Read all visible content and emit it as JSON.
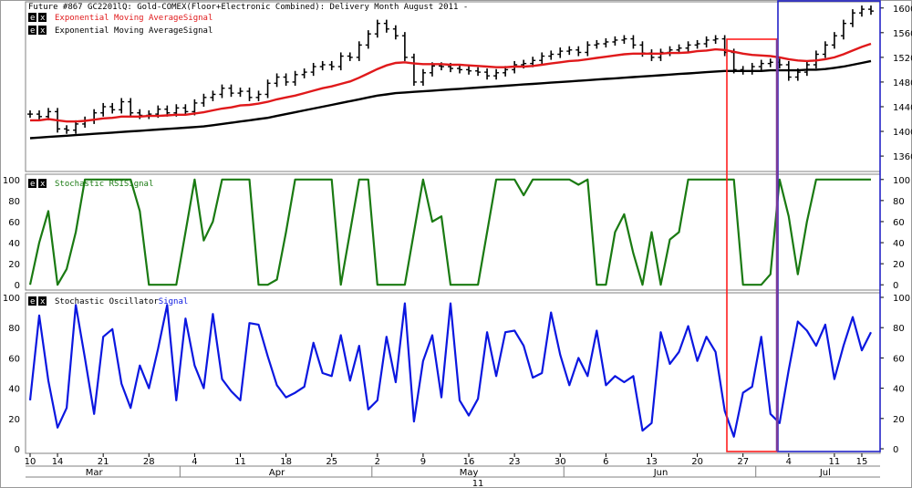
{
  "colors": {
    "price": "#000000",
    "ema_fast": "#e0191b",
    "ema_slow": "#000000",
    "rsi": "#1a7a12",
    "stoch": "#0b17e0",
    "red_box": "#ff1f1f",
    "blue_box": "#2323c8",
    "purple_line": "#7a3a9a",
    "grid": "#c8c8c8"
  },
  "panels": {
    "price": {
      "title": "Future #867 GC2201lQ: Gold-COMEX(Floor+Electronic Combined): Delivery Month August 2011 -",
      "legend": [
        {
          "icon": "ex",
          "text": "Exponential Moving AverageSignal",
          "color": "#e0191b"
        },
        {
          "icon": "ex",
          "text": "Exponential Moving AverageSignal",
          "color": "#000000"
        }
      ]
    },
    "rsi": {
      "legend_prefix": "Stochastic ",
      "legend_mid": "RSI",
      "legend_suffix": "Signal",
      "icon": "ex"
    },
    "stoch": {
      "legend_prefix": "Stochastic Oscillator",
      "legend_suffix": "Signal",
      "icon": "ex"
    }
  },
  "x_axis": {
    "day_ticks": [
      {
        "label": "10",
        "i": 0
      },
      {
        "label": "14",
        "i": 3
      },
      {
        "label": "21",
        "i": 8
      },
      {
        "label": "28",
        "i": 13
      },
      {
        "label": "4",
        "i": 18
      },
      {
        "label": "11",
        "i": 23
      },
      {
        "label": "18",
        "i": 28
      },
      {
        "label": "25",
        "i": 33
      },
      {
        "label": "2",
        "i": 38
      },
      {
        "label": "9",
        "i": 43
      },
      {
        "label": "16",
        "i": 48
      },
      {
        "label": "23",
        "i": 53
      },
      {
        "label": "30",
        "i": 58
      },
      {
        "label": "6",
        "i": 63
      },
      {
        "label": "13",
        "i": 68
      },
      {
        "label": "20",
        "i": 73
      },
      {
        "label": "27",
        "i": 78
      },
      {
        "label": "4",
        "i": 83
      },
      {
        "label": "11",
        "i": 88
      },
      {
        "label": "15",
        "i": 91
      }
    ],
    "months": [
      {
        "label": "Mar",
        "i": 7
      },
      {
        "label": "Apr",
        "i": 27
      },
      {
        "label": "May",
        "i": 48
      },
      {
        "label": "Jun",
        "i": 69
      },
      {
        "label": "Jul",
        "i": 87
      }
    ],
    "year": "11"
  },
  "chart_data": [
    {
      "type": "ohlc",
      "title": "Future #867 GC2201lQ: Gold-COMEX(Floor+Electronic Combined): Delivery Month August 2011 -",
      "ylim": [
        1335,
        1610
      ],
      "yticks": [
        1360,
        1400,
        1440,
        1480,
        1520,
        1560,
        1600
      ],
      "close": [
        1428,
        1424,
        1432,
        1404,
        1402,
        1412,
        1418,
        1430,
        1440,
        1435,
        1448,
        1430,
        1426,
        1428,
        1436,
        1430,
        1438,
        1432,
        1446,
        1455,
        1460,
        1470,
        1462,
        1465,
        1455,
        1460,
        1478,
        1488,
        1480,
        1492,
        1496,
        1505,
        1508,
        1505,
        1522,
        1520,
        1540,
        1558,
        1575,
        1566,
        1555,
        1520,
        1480,
        1495,
        1506,
        1505,
        1502,
        1500,
        1498,
        1496,
        1490,
        1495,
        1500,
        1508,
        1510,
        1515,
        1522,
        1525,
        1530,
        1532,
        1528,
        1540,
        1542,
        1545,
        1548,
        1550,
        1540,
        1527,
        1520,
        1528,
        1532,
        1535,
        1540,
        1542,
        1548,
        1550,
        1528,
        1500,
        1498,
        1505,
        1510,
        1512,
        1508,
        1488,
        1496,
        1508,
        1525,
        1540,
        1555,
        1575,
        1592,
        1598,
        1595
      ],
      "series": [
        {
          "name": "Exponential Moving AverageSignal",
          "color": "#e0191b",
          "values": [
            1418,
            1418,
            1420,
            1418,
            1416,
            1416,
            1417,
            1419,
            1421,
            1422,
            1424,
            1424,
            1424,
            1425,
            1425,
            1426,
            1427,
            1427,
            1429,
            1431,
            1434,
            1437,
            1439,
            1442,
            1443,
            1445,
            1448,
            1452,
            1455,
            1458,
            1462,
            1466,
            1470,
            1473,
            1477,
            1481,
            1487,
            1494,
            1501,
            1507,
            1511,
            1512,
            1510,
            1509,
            1509,
            1509,
            1508,
            1508,
            1507,
            1506,
            1505,
            1504,
            1504,
            1505,
            1505,
            1506,
            1508,
            1510,
            1512,
            1514,
            1515,
            1517,
            1519,
            1521,
            1523,
            1525,
            1526,
            1526,
            1526,
            1526,
            1527,
            1527,
            1528,
            1530,
            1531,
            1533,
            1532,
            1529,
            1526,
            1524,
            1523,
            1522,
            1520,
            1517,
            1515,
            1514,
            1515,
            1517,
            1520,
            1525,
            1531,
            1537,
            1542
          ]
        },
        {
          "name": "Exponential Moving AverageSignal",
          "color": "#000000",
          "values": [
            1389,
            1390,
            1391,
            1392,
            1393,
            1394,
            1395,
            1396,
            1397,
            1398,
            1399,
            1400,
            1401,
            1402,
            1403,
            1404,
            1405,
            1406,
            1407,
            1408,
            1410,
            1412,
            1414,
            1416,
            1418,
            1420,
            1422,
            1425,
            1428,
            1431,
            1434,
            1437,
            1440,
            1443,
            1446,
            1449,
            1452,
            1455,
            1458,
            1460,
            1462,
            1463,
            1464,
            1465,
            1466,
            1467,
            1468,
            1469,
            1470,
            1471,
            1472,
            1473,
            1474,
            1475,
            1476,
            1477,
            1478,
            1479,
            1480,
            1481,
            1482,
            1483,
            1484,
            1485,
            1486,
            1487,
            1488,
            1489,
            1490,
            1491,
            1492,
            1493,
            1494,
            1495,
            1496,
            1497,
            1498,
            1498,
            1498,
            1498,
            1498,
            1499,
            1499,
            1499,
            1499,
            1500,
            1500,
            1501,
            1503,
            1505,
            1508,
            1511,
            1514
          ]
        }
      ]
    },
    {
      "type": "line",
      "title": "Stochastic RSISignal",
      "ylim": [
        -5,
        105
      ],
      "yticks": [
        0,
        20,
        40,
        60,
        80,
        100
      ],
      "series": [
        {
          "name": "Stochastic RSISignal",
          "color": "#1a7a12",
          "values": [
            0,
            40,
            70,
            0,
            15,
            50,
            100,
            100,
            100,
            100,
            100,
            100,
            70,
            0,
            0,
            0,
            0,
            50,
            100,
            42,
            60,
            100,
            100,
            100,
            100,
            0,
            0,
            5,
            50,
            100,
            100,
            100,
            100,
            100,
            0,
            50,
            100,
            100,
            0,
            0,
            0,
            0,
            50,
            100,
            60,
            65,
            0,
            0,
            0,
            0,
            50,
            100,
            100,
            100,
            85,
            100,
            100,
            100,
            100,
            100,
            95,
            100,
            0,
            0,
            50,
            67,
            30,
            0,
            50,
            0,
            43,
            50,
            100,
            100,
            100,
            100,
            100,
            100,
            0,
            0,
            0,
            10,
            100,
            65,
            10,
            60,
            100,
            100,
            100,
            100,
            100,
            100,
            100
          ]
        }
      ]
    },
    {
      "type": "line",
      "title": "Stochastic OscillatorSignal",
      "ylim": [
        -3,
        103
      ],
      "yticks": [
        0,
        20,
        40,
        60,
        80,
        100
      ],
      "series": [
        {
          "name": "Stochastic OscillatorSignal",
          "color": "#0b17e0",
          "values": [
            32,
            88,
            45,
            14,
            27,
            95,
            60,
            23,
            74,
            79,
            43,
            27,
            55,
            40,
            66,
            95,
            32,
            86,
            55,
            40,
            89,
            46,
            38,
            32,
            83,
            82,
            61,
            42,
            34,
            37,
            41,
            70,
            50,
            48,
            75,
            45,
            68,
            26,
            32,
            74,
            44,
            96,
            18,
            58,
            75,
            34,
            96,
            32,
            22,
            33,
            77,
            48,
            77,
            78,
            68,
            47,
            50,
            90,
            62,
            42,
            60,
            48,
            78,
            42,
            48,
            44,
            48,
            12,
            17,
            77,
            56,
            64,
            81,
            58,
            74,
            64,
            25,
            8,
            37,
            41,
            74,
            23,
            17,
            52,
            84,
            78,
            68,
            82,
            46,
            68,
            87,
            65,
            77
          ]
        }
      ]
    }
  ]
}
